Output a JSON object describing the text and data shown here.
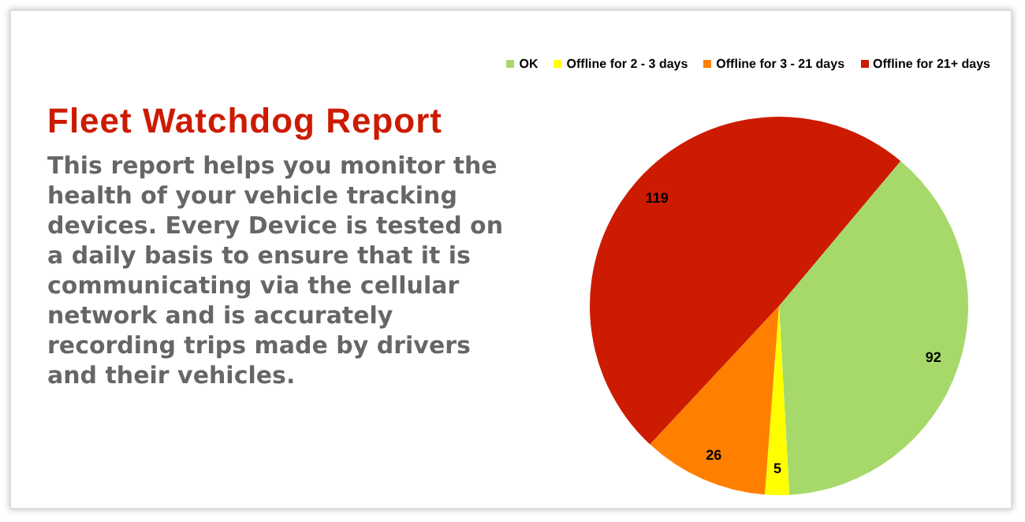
{
  "chart_data": {
    "type": "pie",
    "title": "Fleet Watchdog Report",
    "subtitle": "This report helps you monitor the health of your vehicle tracking devices. Every Device is tested on a daily basis to ensure that it is communicating via the cellular network and is accurately recording trips made by drivers and their vehicles.",
    "categories": [
      "OK",
      "Offline for 2 - 3 days",
      "Offline for 3 - 21 days",
      "Offline for 21+ days"
    ],
    "values": [
      92,
      5,
      26,
      119
    ],
    "colors": [
      "#a6d96a",
      "#ffff00",
      "#ff8000",
      "#cc1b00"
    ],
    "data_labels": true,
    "legend": "top"
  }
}
